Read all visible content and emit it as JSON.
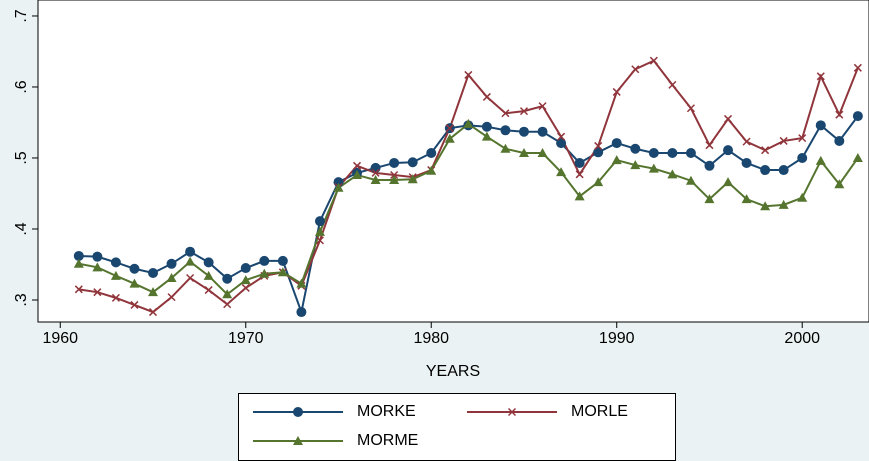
{
  "chart_data": {
    "type": "line",
    "x_label": "YEARS",
    "x": [
      1961,
      1962,
      1963,
      1964,
      1965,
      1966,
      1967,
      1968,
      1969,
      1970,
      1971,
      1972,
      1973,
      1974,
      1975,
      1976,
      1977,
      1978,
      1979,
      1980,
      1981,
      1982,
      1983,
      1984,
      1985,
      1986,
      1987,
      1988,
      1989,
      1990,
      1991,
      1992,
      1993,
      1994,
      1995,
      1996,
      1997,
      1998,
      1999,
      2000,
      2001,
      2002,
      2003
    ],
    "series": [
      {
        "name": "MORKE",
        "color": "#1a476f",
        "marker": "circle",
        "values": [
          0.362,
          0.361,
          0.353,
          0.344,
          0.338,
          0.351,
          0.368,
          0.353,
          0.33,
          0.345,
          0.355,
          0.355,
          0.283,
          0.411,
          0.466,
          0.479,
          0.486,
          0.493,
          0.494,
          0.507,
          0.542,
          0.546,
          0.544,
          0.539,
          0.537,
          0.537,
          0.521,
          0.493,
          0.508,
          0.521,
          0.513,
          0.507,
          0.507,
          0.507,
          0.489,
          0.511,
          0.493,
          0.483,
          0.483,
          0.5,
          0.546,
          0.524,
          0.559
        ]
      },
      {
        "name": "MORLE",
        "color": "#90353b",
        "marker": "x",
        "values": [
          0.315,
          0.311,
          0.303,
          0.293,
          0.283,
          0.304,
          0.331,
          0.314,
          0.294,
          0.317,
          0.334,
          0.339,
          0.32,
          0.384,
          0.459,
          0.489,
          0.479,
          0.476,
          0.473,
          0.483,
          0.542,
          0.617,
          0.586,
          0.563,
          0.566,
          0.573,
          0.53,
          0.477,
          0.517,
          0.593,
          0.625,
          0.637,
          0.603,
          0.57,
          0.518,
          0.555,
          0.523,
          0.511,
          0.524,
          0.528,
          0.615,
          0.561,
          0.627
        ]
      },
      {
        "name": "MORME",
        "color": "#55752f",
        "marker": "triangle",
        "values": [
          0.351,
          0.346,
          0.334,
          0.323,
          0.311,
          0.331,
          0.354,
          0.334,
          0.308,
          0.328,
          0.337,
          0.339,
          0.323,
          0.396,
          0.458,
          0.476,
          0.469,
          0.469,
          0.47,
          0.482,
          0.527,
          0.548,
          0.53,
          0.513,
          0.507,
          0.507,
          0.48,
          0.446,
          0.466,
          0.497,
          0.49,
          0.485,
          0.477,
          0.468,
          0.442,
          0.466,
          0.442,
          0.432,
          0.434,
          0.444,
          0.496,
          0.463,
          0.5
        ]
      }
    ],
    "xlim": [
      1958.8,
      2003.6
    ],
    "xticks": [
      1960,
      1970,
      1980,
      1990,
      2000
    ],
    "ylim": [
      0.269,
      0.7225
    ],
    "yticks": [
      {
        "value": 0.3,
        "label": ".3"
      },
      {
        "value": 0.4,
        "label": ".4"
      },
      {
        "value": 0.5,
        "label": ".5"
      },
      {
        "value": 0.6,
        "label": ".6"
      },
      {
        "value": 0.7,
        "label": ".7"
      }
    ],
    "legend": "bottom"
  }
}
